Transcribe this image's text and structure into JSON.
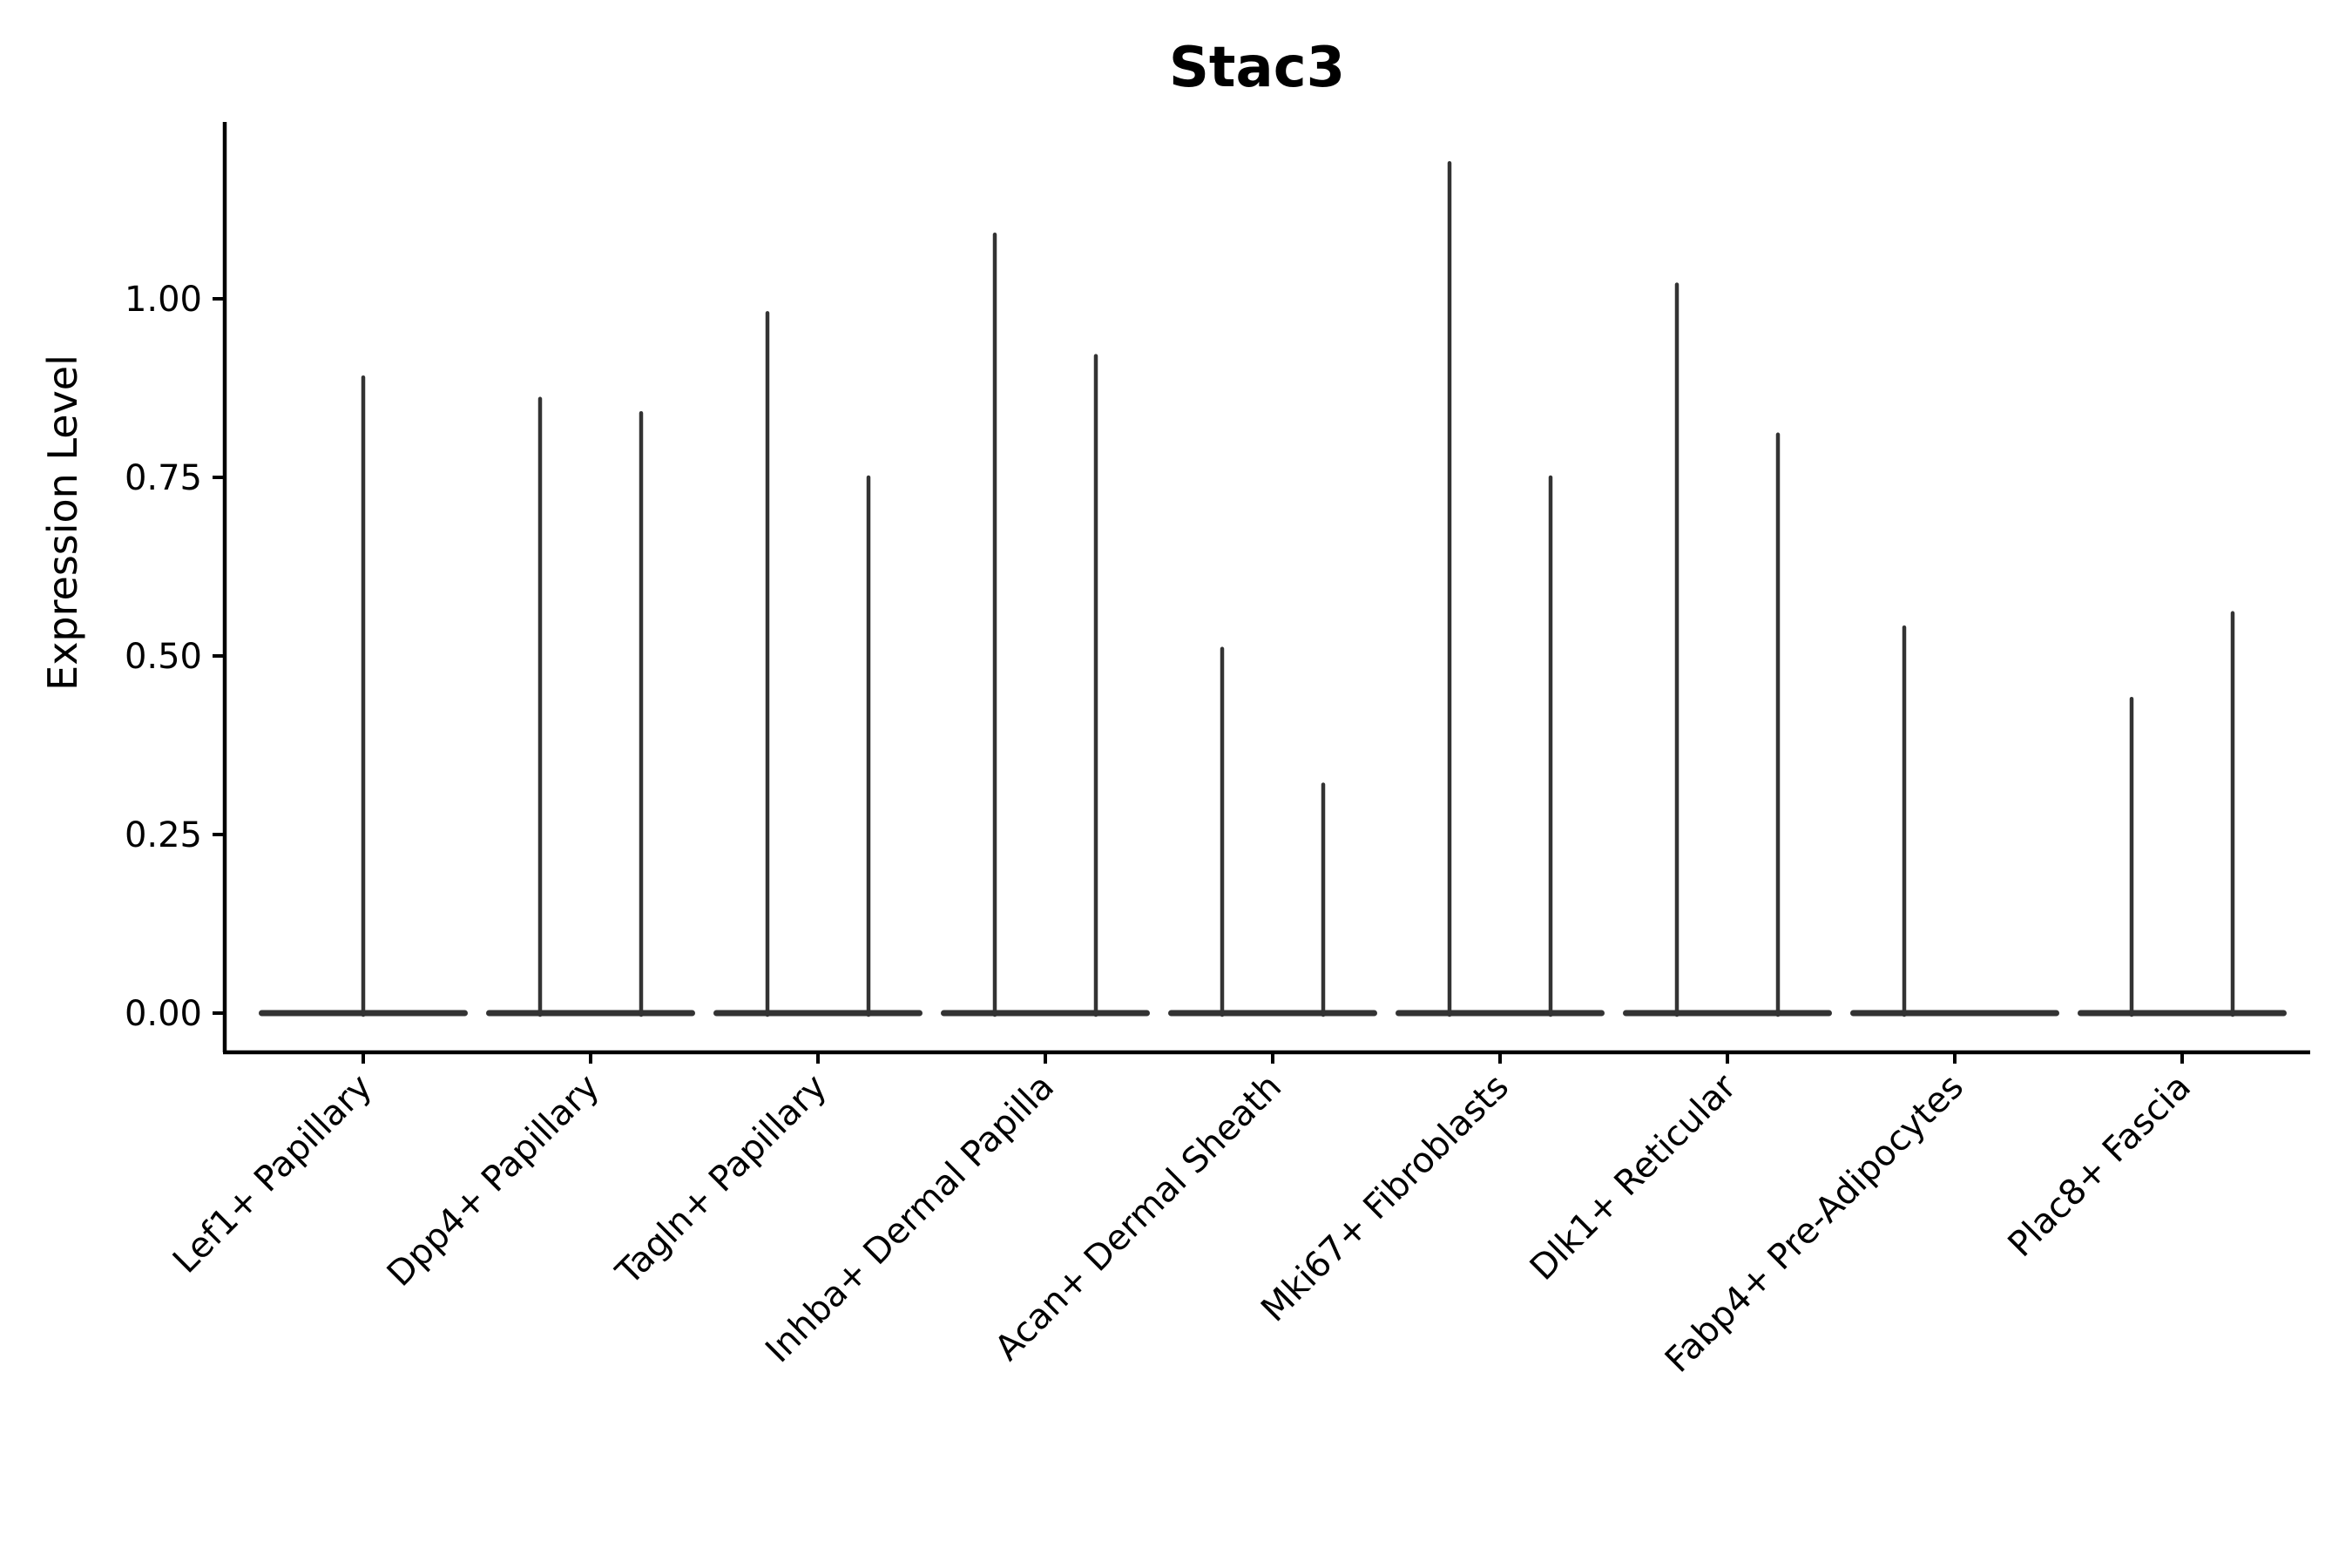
{
  "chart_data": {
    "type": "violin",
    "title": "Stac3",
    "ylabel": "Expression Level",
    "xlabel": "",
    "grid": false,
    "legend": null,
    "ylim": [
      -0.055,
      1.248
    ],
    "yticks": [
      {
        "label": "0.00",
        "value": 0.0
      },
      {
        "label": "0.25",
        "value": 0.25
      },
      {
        "label": "0.50",
        "value": 0.5
      },
      {
        "label": "0.75",
        "value": 0.75
      },
      {
        "label": "1.00",
        "value": 1.0
      }
    ],
    "categories": [
      "Lef1+ Papillary",
      "Dpp4+ Papillary",
      "Tagln+ Papillary",
      "Inhba+ Dermal Papilla",
      "Acan+ Dermal Sheath",
      "Mki67+ Fibroblasts",
      "Dlk1+ Reticular",
      "Fabp4+ Pre-Adipocytes",
      "Plac8+ Fascia"
    ],
    "series": [
      {
        "category": "Lef1+ Papillary",
        "spikes": [
          {
            "group": "center",
            "max": 0.89
          }
        ]
      },
      {
        "category": "Dpp4+ Papillary",
        "spikes": [
          {
            "group": "left",
            "max": 0.86
          },
          {
            "group": "right",
            "max": 0.84
          }
        ]
      },
      {
        "category": "Tagln+ Papillary",
        "spikes": [
          {
            "group": "left",
            "max": 0.98
          },
          {
            "group": "right",
            "max": 0.75
          }
        ]
      },
      {
        "category": "Inhba+ Dermal Papilla",
        "spikes": [
          {
            "group": "left",
            "max": 1.09
          },
          {
            "group": "right",
            "max": 0.92
          }
        ]
      },
      {
        "category": "Acan+ Dermal Sheath",
        "spikes": [
          {
            "group": "left",
            "max": 0.51
          },
          {
            "group": "right",
            "max": 0.32
          }
        ]
      },
      {
        "category": "Mki67+ Fibroblasts",
        "spikes": [
          {
            "group": "left",
            "max": 1.19
          },
          {
            "group": "right",
            "max": 0.75
          }
        ]
      },
      {
        "category": "Dlk1+ Reticular",
        "spikes": [
          {
            "group": "left",
            "max": 1.02
          },
          {
            "group": "right",
            "max": 0.81
          }
        ]
      },
      {
        "category": "Fabp4+ Pre-Adipocytes",
        "spikes": [
          {
            "group": "left",
            "max": 0.54
          }
        ]
      },
      {
        "category": "Plac8+ Fascia",
        "spikes": [
          {
            "group": "left",
            "max": 0.44
          },
          {
            "group": "right",
            "max": 0.56
          }
        ]
      }
    ],
    "colors": {
      "violin": "#333333",
      "axis": "#000000",
      "text": "#000000",
      "background": "#ffffff"
    }
  }
}
